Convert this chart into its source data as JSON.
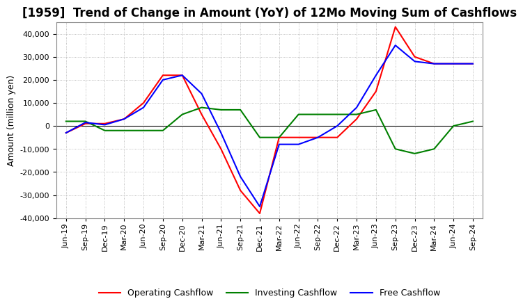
{
  "title": "[1959]  Trend of Change in Amount (YoY) of 12Mo Moving Sum of Cashflows",
  "ylabel": "Amount (million yen)",
  "ylim": [
    -40000,
    45000
  ],
  "yticks": [
    -40000,
    -30000,
    -20000,
    -10000,
    0,
    10000,
    20000,
    30000,
    40000
  ],
  "dates": [
    "Jun-19",
    "Sep-19",
    "Dec-19",
    "Mar-20",
    "Jun-20",
    "Sep-20",
    "Dec-20",
    "Mar-21",
    "Jun-21",
    "Sep-21",
    "Dec-21",
    "Mar-22",
    "Jun-22",
    "Sep-22",
    "Dec-22",
    "Mar-23",
    "Jun-23",
    "Sep-23",
    "Dec-23",
    "Mar-24",
    "Jun-24",
    "Sep-24"
  ],
  "operating": [
    -3000,
    1000,
    1000,
    3000,
    10000,
    22000,
    22000,
    5000,
    -10000,
    -28000,
    -38000,
    -5000,
    -5000,
    -5000,
    -5000,
    3000,
    15000,
    43000,
    30000,
    27000,
    27000,
    27000
  ],
  "investing": [
    2000,
    2000,
    -2000,
    -2000,
    -2000,
    -2000,
    5000,
    8000,
    7000,
    7000,
    -5000,
    -5000,
    5000,
    5000,
    5000,
    5000,
    7000,
    -10000,
    -12000,
    -10000,
    0,
    2000
  ],
  "free": [
    -3000,
    1500,
    500,
    3000,
    8000,
    20000,
    22000,
    14000,
    -3000,
    -22000,
    -35000,
    -8000,
    -8000,
    -5000,
    0,
    8000,
    22000,
    35000,
    28000,
    27000,
    27000,
    27000
  ],
  "operating_color": "#ff0000",
  "investing_color": "#008000",
  "free_color": "#0000ff",
  "background_color": "#ffffff",
  "grid_color": "#aaaaaa",
  "title_fontsize": 12,
  "label_fontsize": 9,
  "tick_fontsize": 8
}
